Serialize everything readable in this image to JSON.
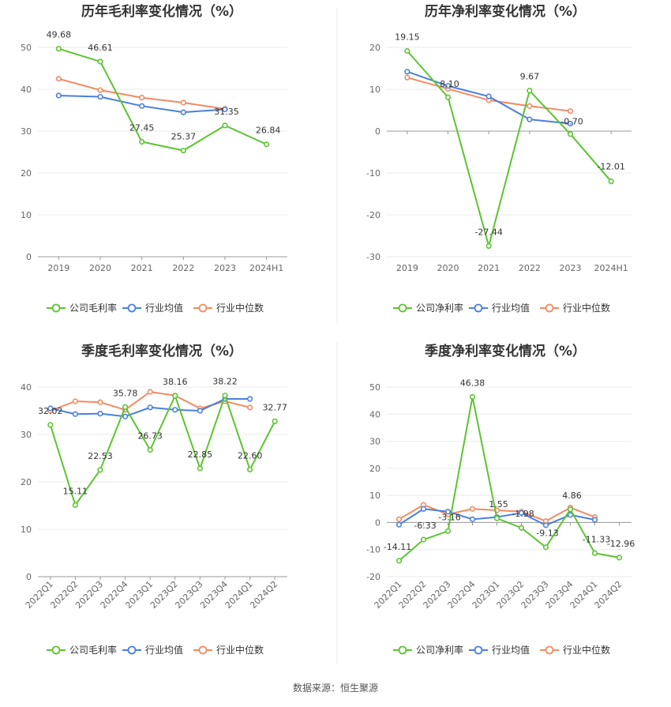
{
  "source": "数据来源：恒生聚源",
  "series_names": [
    "公司毛利率",
    "行业均值",
    "行业中位数"
  ],
  "colors": {
    "company": "#5cc430",
    "avg": "#4a7fe0",
    "median": "#f28a62"
  },
  "chart_data": [
    {
      "type": "line",
      "title": "历年毛利率变化情况（%）",
      "categories": [
        "2019",
        "2020",
        "2021",
        "2022",
        "2023",
        "2024H1"
      ],
      "yticks": [
        0,
        10,
        20,
        30,
        40,
        50
      ],
      "ylim": [
        0,
        50
      ],
      "legend": [
        "公司毛利率",
        "行业均值",
        "行业中位数"
      ],
      "series": [
        {
          "name": "公司毛利率",
          "values": [
            49.68,
            46.61,
            27.45,
            25.37,
            31.35,
            26.84
          ],
          "labels": [
            "49.68",
            "46.61",
            "27.45",
            "25.37",
            "31.35",
            "26.84"
          ]
        },
        {
          "name": "行业均值",
          "values": [
            38.5,
            38.2,
            36.0,
            34.5,
            35.2,
            null
          ]
        },
        {
          "name": "行业中位数",
          "values": [
            42.5,
            39.8,
            38.0,
            36.8,
            35.3,
            null
          ]
        }
      ]
    },
    {
      "type": "line",
      "title": "历年净利率变化情况（%）",
      "categories": [
        "2019",
        "2020",
        "2021",
        "2022",
        "2023",
        "2024H1"
      ],
      "yticks": [
        -30,
        -20,
        -10,
        0,
        10,
        20
      ],
      "ylim": [
        -30,
        20
      ],
      "legend": [
        "公司净利率",
        "行业均值",
        "行业中位数"
      ],
      "series": [
        {
          "name": "公司净利率",
          "values": [
            19.15,
            8.1,
            -27.44,
            9.67,
            -0.7,
            -12.01
          ],
          "labels": [
            "19.15",
            "8.10",
            "-27.44",
            "9.67",
            "-0.70",
            "-12.01"
          ]
        },
        {
          "name": "行业均值",
          "values": [
            14.2,
            10.8,
            8.3,
            2.8,
            1.8,
            null
          ]
        },
        {
          "name": "行业中位数",
          "values": [
            12.8,
            10.1,
            7.4,
            6.0,
            4.8,
            null
          ]
        }
      ]
    },
    {
      "type": "line",
      "title": "季度毛利率变化情况（%）",
      "categories": [
        "2022Q1",
        "2022Q2",
        "2022Q3",
        "2022Q4",
        "2023Q1",
        "2023Q2",
        "2023Q3",
        "2023Q4",
        "2024Q1",
        "2024Q2"
      ],
      "yticks": [
        0,
        10,
        20,
        30,
        40
      ],
      "ylim": [
        0,
        40
      ],
      "legend": [
        "公司毛利率",
        "行业均值",
        "行业中位数"
      ],
      "series": [
        {
          "name": "公司毛利率",
          "values": [
            32.02,
            15.11,
            22.53,
            35.78,
            26.73,
            38.16,
            22.85,
            38.22,
            22.6,
            32.77
          ],
          "labels": [
            "32.02",
            "15.11",
            "22.53",
            "35.78",
            "26.73",
            "38.16",
            "22.85",
            "38.22",
            "22.60",
            "32.77"
          ]
        },
        {
          "name": "行业均值",
          "values": [
            35.5,
            34.3,
            34.4,
            33.8,
            35.7,
            35.2,
            35.0,
            37.5,
            37.5,
            null
          ]
        },
        {
          "name": "行业中位数",
          "values": [
            35.0,
            37.0,
            36.8,
            35.2,
            39.0,
            38.2,
            35.5,
            37.0,
            35.7,
            null
          ]
        }
      ]
    },
    {
      "type": "line",
      "title": "季度净利率变化情况（%）",
      "categories": [
        "2022Q1",
        "2022Q2",
        "2022Q3",
        "2022Q4",
        "2023Q1",
        "2023Q2",
        "2023Q3",
        "2023Q4",
        "2024Q1",
        "2024Q2"
      ],
      "yticks": [
        -20,
        -10,
        0,
        10,
        20,
        30,
        40,
        50
      ],
      "ylim": [
        -20,
        50
      ],
      "legend": [
        "公司净利率",
        "行业均值",
        "行业中位数"
      ],
      "series": [
        {
          "name": "公司净利率",
          "values": [
            -14.11,
            -6.33,
            -3.16,
            46.38,
            1.55,
            -1.98,
            -9.13,
            4.86,
            -11.33,
            -12.96
          ],
          "labels": [
            "-14.11",
            "-6.33",
            "-3.16",
            "46.38",
            "1.55",
            "-1.98",
            "-9.13",
            "4.86",
            "-11.33",
            "-12.96"
          ]
        },
        {
          "name": "行业均值",
          "values": [
            -0.8,
            5.0,
            4.0,
            1.2,
            2.0,
            3.5,
            -1.0,
            2.8,
            1.0,
            null
          ]
        },
        {
          "name": "行业中位数",
          "values": [
            1.2,
            6.5,
            3.0,
            5.0,
            4.5,
            4.0,
            0.5,
            5.5,
            2.0,
            null
          ]
        }
      ]
    }
  ]
}
